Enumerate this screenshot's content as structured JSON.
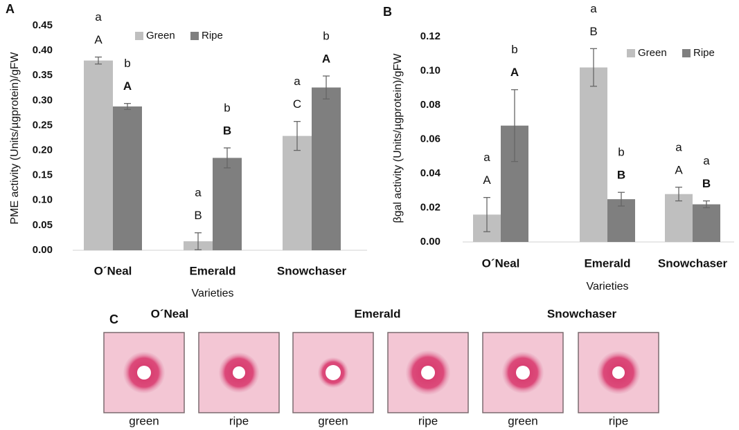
{
  "chart_data": [
    {
      "type": "bar",
      "panel": "A",
      "y_label": "PME activity (Units/µgprotein)/gFW",
      "x_label": "Varieties",
      "categories": [
        "O´Neal",
        "Emerald",
        "Snowchaser"
      ],
      "series": [
        {
          "name": "Green",
          "color": "#bfbfbf",
          "values": [
            0.38,
            0.018,
            0.229
          ],
          "errors": [
            0.007,
            0.017,
            0.029
          ],
          "letters_lower": [
            "a",
            "a",
            "a"
          ],
          "letters_upper": [
            "A",
            "B",
            "C"
          ]
        },
        {
          "name": "Ripe",
          "color": "#7f7f7f",
          "values": [
            0.288,
            0.185,
            0.326
          ],
          "errors": [
            0.006,
            0.02,
            0.023
          ],
          "letters_lower": [
            "b",
            "b",
            "b"
          ],
          "letters_upper": [
            "A",
            "B",
            "A"
          ]
        }
      ],
      "ylim": [
        0,
        0.45
      ],
      "yticks": [
        {
          "value": 0,
          "label": "0.00"
        },
        {
          "value": 0.05,
          "label": "0.05"
        },
        {
          "value": 0.1,
          "label": "0.10"
        },
        {
          "value": 0.15,
          "label": "0.15"
        },
        {
          "value": 0.2,
          "label": "0.20"
        },
        {
          "value": 0.25,
          "label": "0.25"
        },
        {
          "value": 0.3,
          "label": "0.30"
        },
        {
          "value": 0.35,
          "label": "0.35"
        },
        {
          "value": 0.4,
          "label": "0.40"
        },
        {
          "value": 0.45,
          "label": "0.45"
        }
      ],
      "legend": "top-left",
      "grid": false
    },
    {
      "type": "bar",
      "panel": "B",
      "y_label": "βgal activity (Units/µgprotein)/gFW",
      "x_label": "Varieties",
      "categories": [
        "O´Neal",
        "Emerald",
        "Snowchaser"
      ],
      "series": [
        {
          "name": "Green",
          "color": "#bfbfbf",
          "values": [
            0.016,
            0.102,
            0.028
          ],
          "errors": [
            0.01,
            0.011,
            0.004
          ],
          "letters_lower": [
            "a",
            "a",
            "a"
          ],
          "letters_upper": [
            "A",
            "B",
            "A"
          ]
        },
        {
          "name": "Ripe",
          "color": "#7f7f7f",
          "values": [
            0.068,
            0.025,
            0.022
          ],
          "errors": [
            0.021,
            0.004,
            0.002
          ],
          "letters_lower": [
            "b",
            "b",
            "a"
          ],
          "letters_upper": [
            "A",
            "B",
            "B"
          ]
        }
      ],
      "ylim": [
        0,
        0.12
      ],
      "yticks": [
        {
          "value": 0,
          "label": "0.00"
        },
        {
          "value": 0.02,
          "label": "0.02"
        },
        {
          "value": 0.04,
          "label": "0.04"
        },
        {
          "value": 0.06,
          "label": "0.06"
        },
        {
          "value": 0.08,
          "label": "0.08"
        },
        {
          "value": 0.1,
          "label": "0.10"
        },
        {
          "value": 0.12,
          "label": "0.12"
        }
      ],
      "legend": "top-right",
      "grid": false
    }
  ],
  "panel_c": {
    "panel": "C",
    "varieties": [
      "O´Neal",
      "Emerald",
      "Snowchaser"
    ],
    "captions": [
      "green",
      "ripe",
      "green",
      "ripe",
      "green",
      "ripe"
    ]
  }
}
